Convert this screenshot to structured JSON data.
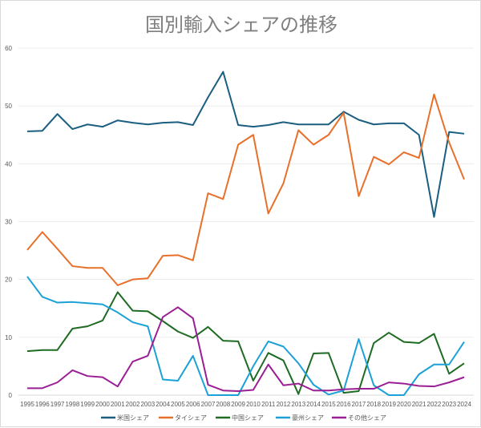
{
  "chart_data": {
    "type": "line",
    "title": "国別輸入シェアの推移",
    "xlabel": "",
    "ylabel": "",
    "ylim": [
      0,
      60
    ],
    "yticks": [
      0,
      10,
      20,
      30,
      40,
      50,
      60
    ],
    "grid": true,
    "legend": "bottom",
    "categories": [
      "1995",
      "1996",
      "1997",
      "1998",
      "1999",
      "2000",
      "2001",
      "2002",
      "2003",
      "2004",
      "2005",
      "2006",
      "2007",
      "2008",
      "2009",
      "2010",
      "2011",
      "2012",
      "2013",
      "2014",
      "2015",
      "2016",
      "2017",
      "2018",
      "2019",
      "2020",
      "2021",
      "2022",
      "2023",
      "2024"
    ],
    "series": [
      {
        "name": "米国シェア",
        "color": "#1b5e80",
        "values": [
          45.6,
          45.7,
          48.6,
          46.0,
          46.8,
          46.4,
          47.5,
          47.1,
          46.8,
          47.1,
          47.2,
          46.7,
          51.5,
          55.9,
          46.7,
          46.4,
          46.7,
          47.2,
          46.8,
          46.8,
          46.8,
          49.0,
          47.6,
          46.8,
          47.0,
          47.0,
          45.0,
          30.8,
          45.5,
          45.2
        ]
      },
      {
        "name": "タイシェア",
        "color": "#e8702a",
        "values": [
          25.1,
          28.2,
          25.3,
          22.3,
          22.0,
          22.0,
          19.0,
          20.0,
          20.2,
          24.1,
          24.2,
          23.3,
          34.9,
          33.9,
          43.3,
          45.0,
          31.4,
          36.6,
          45.8,
          43.3,
          45.0,
          48.8,
          34.4,
          41.2,
          39.9,
          42.0,
          41.0,
          52.0,
          43.7,
          37.3
        ]
      },
      {
        "name": "中国シェア",
        "color": "#1e6b23",
        "values": [
          7.6,
          7.8,
          7.8,
          11.5,
          11.9,
          12.9,
          17.8,
          14.6,
          14.5,
          12.8,
          11.0,
          9.9,
          11.8,
          9.4,
          9.3,
          2.5,
          7.3,
          6.0,
          0.2,
          7.2,
          7.3,
          0.4,
          0.7,
          9.0,
          10.8,
          9.2,
          9.0,
          10.6,
          3.7,
          5.5
        ]
      },
      {
        "name": "豪州シェア",
        "color": "#1ba1d8",
        "values": [
          20.5,
          17.0,
          16.0,
          16.1,
          15.9,
          15.7,
          14.3,
          12.6,
          11.9,
          2.7,
          2.5,
          6.8,
          0,
          0,
          0,
          5.0,
          9.3,
          8.4,
          5.5,
          1.8,
          0.1,
          0.8,
          9.7,
          1.7,
          0,
          0,
          3.6,
          5.3,
          5.3,
          9.2
        ]
      },
      {
        "name": "その他シェア",
        "color": "#9a1f94",
        "values": [
          1.2,
          1.2,
          2.2,
          4.3,
          3.3,
          3.1,
          1.5,
          5.8,
          6.8,
          13.5,
          15.2,
          13.3,
          1.8,
          0.8,
          0.7,
          0.9,
          5.3,
          1.7,
          2.0,
          0.8,
          0.8,
          1.0,
          1.1,
          1.1,
          2.2,
          2.0,
          1.6,
          1.5,
          2.2,
          3.1
        ]
      }
    ]
  }
}
